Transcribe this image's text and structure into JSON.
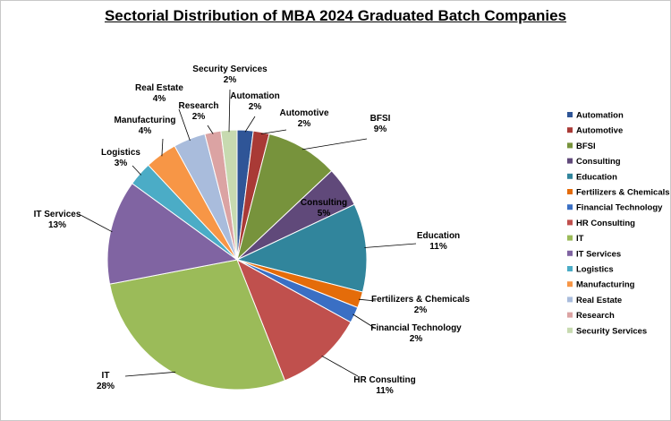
{
  "chart_data": {
    "type": "pie",
    "title": "Sectorial Distribution of MBA 2024 Graduated Batch Companies",
    "legend_position": "right",
    "slices": [
      {
        "label": "Automation",
        "value": 2,
        "value_label": "2%",
        "color": "#2f5597"
      },
      {
        "label": "Automotive",
        "value": 2,
        "value_label": "2%",
        "color": "#a93a36"
      },
      {
        "label": "BFSI",
        "value": 9,
        "value_label": "9%",
        "color": "#77933c"
      },
      {
        "label": "Consulting",
        "value": 5,
        "value_label": "5%",
        "color": "#60497a"
      },
      {
        "label": "Education",
        "value": 11,
        "value_label": "11%",
        "color": "#31859c"
      },
      {
        "label": "Fertilizers & Chemicals",
        "value": 2,
        "value_label": "2%",
        "color": "#e46c0a"
      },
      {
        "label": "Financial Technology",
        "value": 2,
        "value_label": "2%",
        "color": "#3a6fc4"
      },
      {
        "label": "HR Consulting",
        "value": 11,
        "value_label": "11%",
        "color": "#c0504d"
      },
      {
        "label": "IT",
        "value": 28,
        "value_label": "28%",
        "color": "#9bbb59"
      },
      {
        "label": "IT Services",
        "value": 13,
        "value_label": "13%",
        "color": "#8064a2"
      },
      {
        "label": "Logistics",
        "value": 3,
        "value_label": "3%",
        "color": "#4bacc6"
      },
      {
        "label": "Manufacturing",
        "value": 4,
        "value_label": "4%",
        "color": "#f79646"
      },
      {
        "label": "Real Estate",
        "value": 4,
        "value_label": "4%",
        "color": "#a9bcdc"
      },
      {
        "label": "Research",
        "value": 2,
        "value_label": "2%",
        "color": "#dba3a3"
      },
      {
        "label": "Security Services",
        "value": 2,
        "value_label": "2%",
        "color": "#c7dab0"
      }
    ]
  }
}
